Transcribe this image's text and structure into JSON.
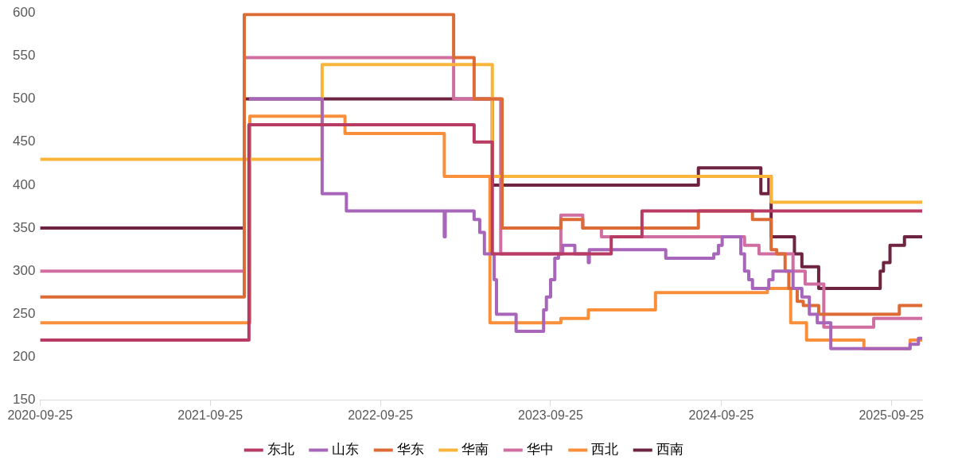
{
  "chart_data": {
    "type": "step",
    "xlim": [
      "2020-09-25",
      "2025-11-30"
    ],
    "xticks": [
      "2020-09-25",
      "2021-09-25",
      "2022-09-25",
      "2023-09-25",
      "2024-09-25",
      "2025-09-25"
    ],
    "ylim": [
      150,
      600
    ],
    "yticks": [
      150,
      200,
      250,
      300,
      350,
      400,
      450,
      500,
      550,
      600
    ],
    "grid": false,
    "legend": "bottom",
    "marker": "none",
    "line_style": "solid",
    "series": [
      {
        "name": "东北",
        "color": "#b83b63",
        "x": [
          "2020-09-25",
          "2021-12-17",
          "2023-04-14",
          "2023-05-23",
          "2024-02-02",
          "2024-04-08",
          "2025-11-30"
        ],
        "values": [
          220,
          470,
          450,
          320,
          340,
          370,
          370
        ]
      },
      {
        "name": "山东",
        "color": "#a866bb",
        "x": [
          "2021-12-17",
          "2022-05-23",
          "2022-07-14",
          "2023-02-09",
          "2023-02-11",
          "2023-04-14",
          "2023-04-26",
          "2023-05-06",
          "2023-05-27",
          "2023-06-01",
          "2023-07-13",
          "2023-09-10",
          "2023-09-16",
          "2023-09-25",
          "2023-10-04",
          "2023-10-12",
          "2023-10-21",
          "2023-11-16",
          "2023-12-15",
          "2023-12-17",
          "2024-05-29",
          "2024-09-09",
          "2024-09-19",
          "2024-09-27",
          "2024-11-06",
          "2024-11-14",
          "2024-11-23",
          "2024-12-01",
          "2025-01-05",
          "2025-01-14",
          "2025-02-26",
          "2025-03-17",
          "2025-04-02",
          "2025-04-19",
          "2025-05-18",
          "2025-11-04",
          "2025-11-22",
          "2025-11-30"
        ],
        "values": [
          500,
          390,
          370,
          340,
          370,
          360,
          345,
          320,
          290,
          250,
          230,
          255,
          270,
          290,
          315,
          320,
          330,
          320,
          310,
          325,
          315,
          320,
          330,
          340,
          320,
          300,
          290,
          280,
          290,
          300,
          280,
          270,
          250,
          240,
          210,
          215,
          222,
          222
        ]
      },
      {
        "name": "华东",
        "color": "#dd6b35",
        "x": [
          "2020-09-25",
          "2021-12-07",
          "2023-03-01",
          "2023-04-14",
          "2023-06-13",
          "2023-10-17",
          "2023-12-03",
          "2024-08-07",
          "2024-12-01",
          "2025-01-10",
          "2025-01-22",
          "2025-02-09",
          "2025-02-17",
          "2025-03-07",
          "2025-03-20",
          "2025-04-22",
          "2025-10-12",
          "2025-11-30"
        ],
        "values": [
          270,
          598,
          548,
          500,
          350,
          360,
          350,
          370,
          360,
          325,
          320,
          300,
          280,
          265,
          260,
          250,
          260,
          260
        ]
      },
      {
        "name": "华南",
        "color": "#f9b53a",
        "x": [
          "2020-09-25",
          "2022-05-23",
          "2023-05-23",
          "2025-01-10",
          "2025-11-30"
        ],
        "values": [
          430,
          540,
          410,
          380,
          380
        ]
      },
      {
        "name": "华中",
        "color": "#d06ea1",
        "x": [
          "2020-09-25",
          "2021-12-07",
          "2023-03-01",
          "2023-06-10",
          "2023-10-17",
          "2023-12-03",
          "2024-01-12",
          "2024-11-14",
          "2024-12-15",
          "2025-02-26",
          "2025-03-24",
          "2025-05-03",
          "2025-08-18",
          "2025-11-30"
        ],
        "values": [
          300,
          548,
          500,
          320,
          365,
          350,
          340,
          330,
          320,
          300,
          285,
          235,
          245,
          245
        ]
      },
      {
        "name": "西北",
        "color": "#f98f3b",
        "x": [
          "2020-09-25",
          "2021-12-19",
          "2022-07-11",
          "2023-02-09",
          "2023-05-18",
          "2023-10-17",
          "2023-12-15",
          "2024-05-07",
          "2025-01-02",
          "2025-02-21",
          "2025-03-27",
          "2025-07-28",
          "2025-11-04",
          "2025-11-30"
        ],
        "values": [
          240,
          480,
          460,
          410,
          240,
          245,
          255,
          275,
          280,
          240,
          220,
          210,
          220,
          220
        ]
      },
      {
        "name": "西南",
        "color": "#6e2440",
        "x": [
          "2020-09-25",
          "2021-12-07",
          "2023-05-23",
          "2024-08-07",
          "2024-12-19",
          "2025-01-05",
          "2025-01-10",
          "2025-03-01",
          "2025-03-17",
          "2025-04-22",
          "2025-09-01",
          "2025-09-08",
          "2025-09-22",
          "2025-10-23",
          "2025-11-30"
        ],
        "values": [
          350,
          500,
          400,
          420,
          390,
          410,
          340,
          320,
          305,
          280,
          300,
          310,
          330,
          340,
          340
        ]
      }
    ]
  }
}
